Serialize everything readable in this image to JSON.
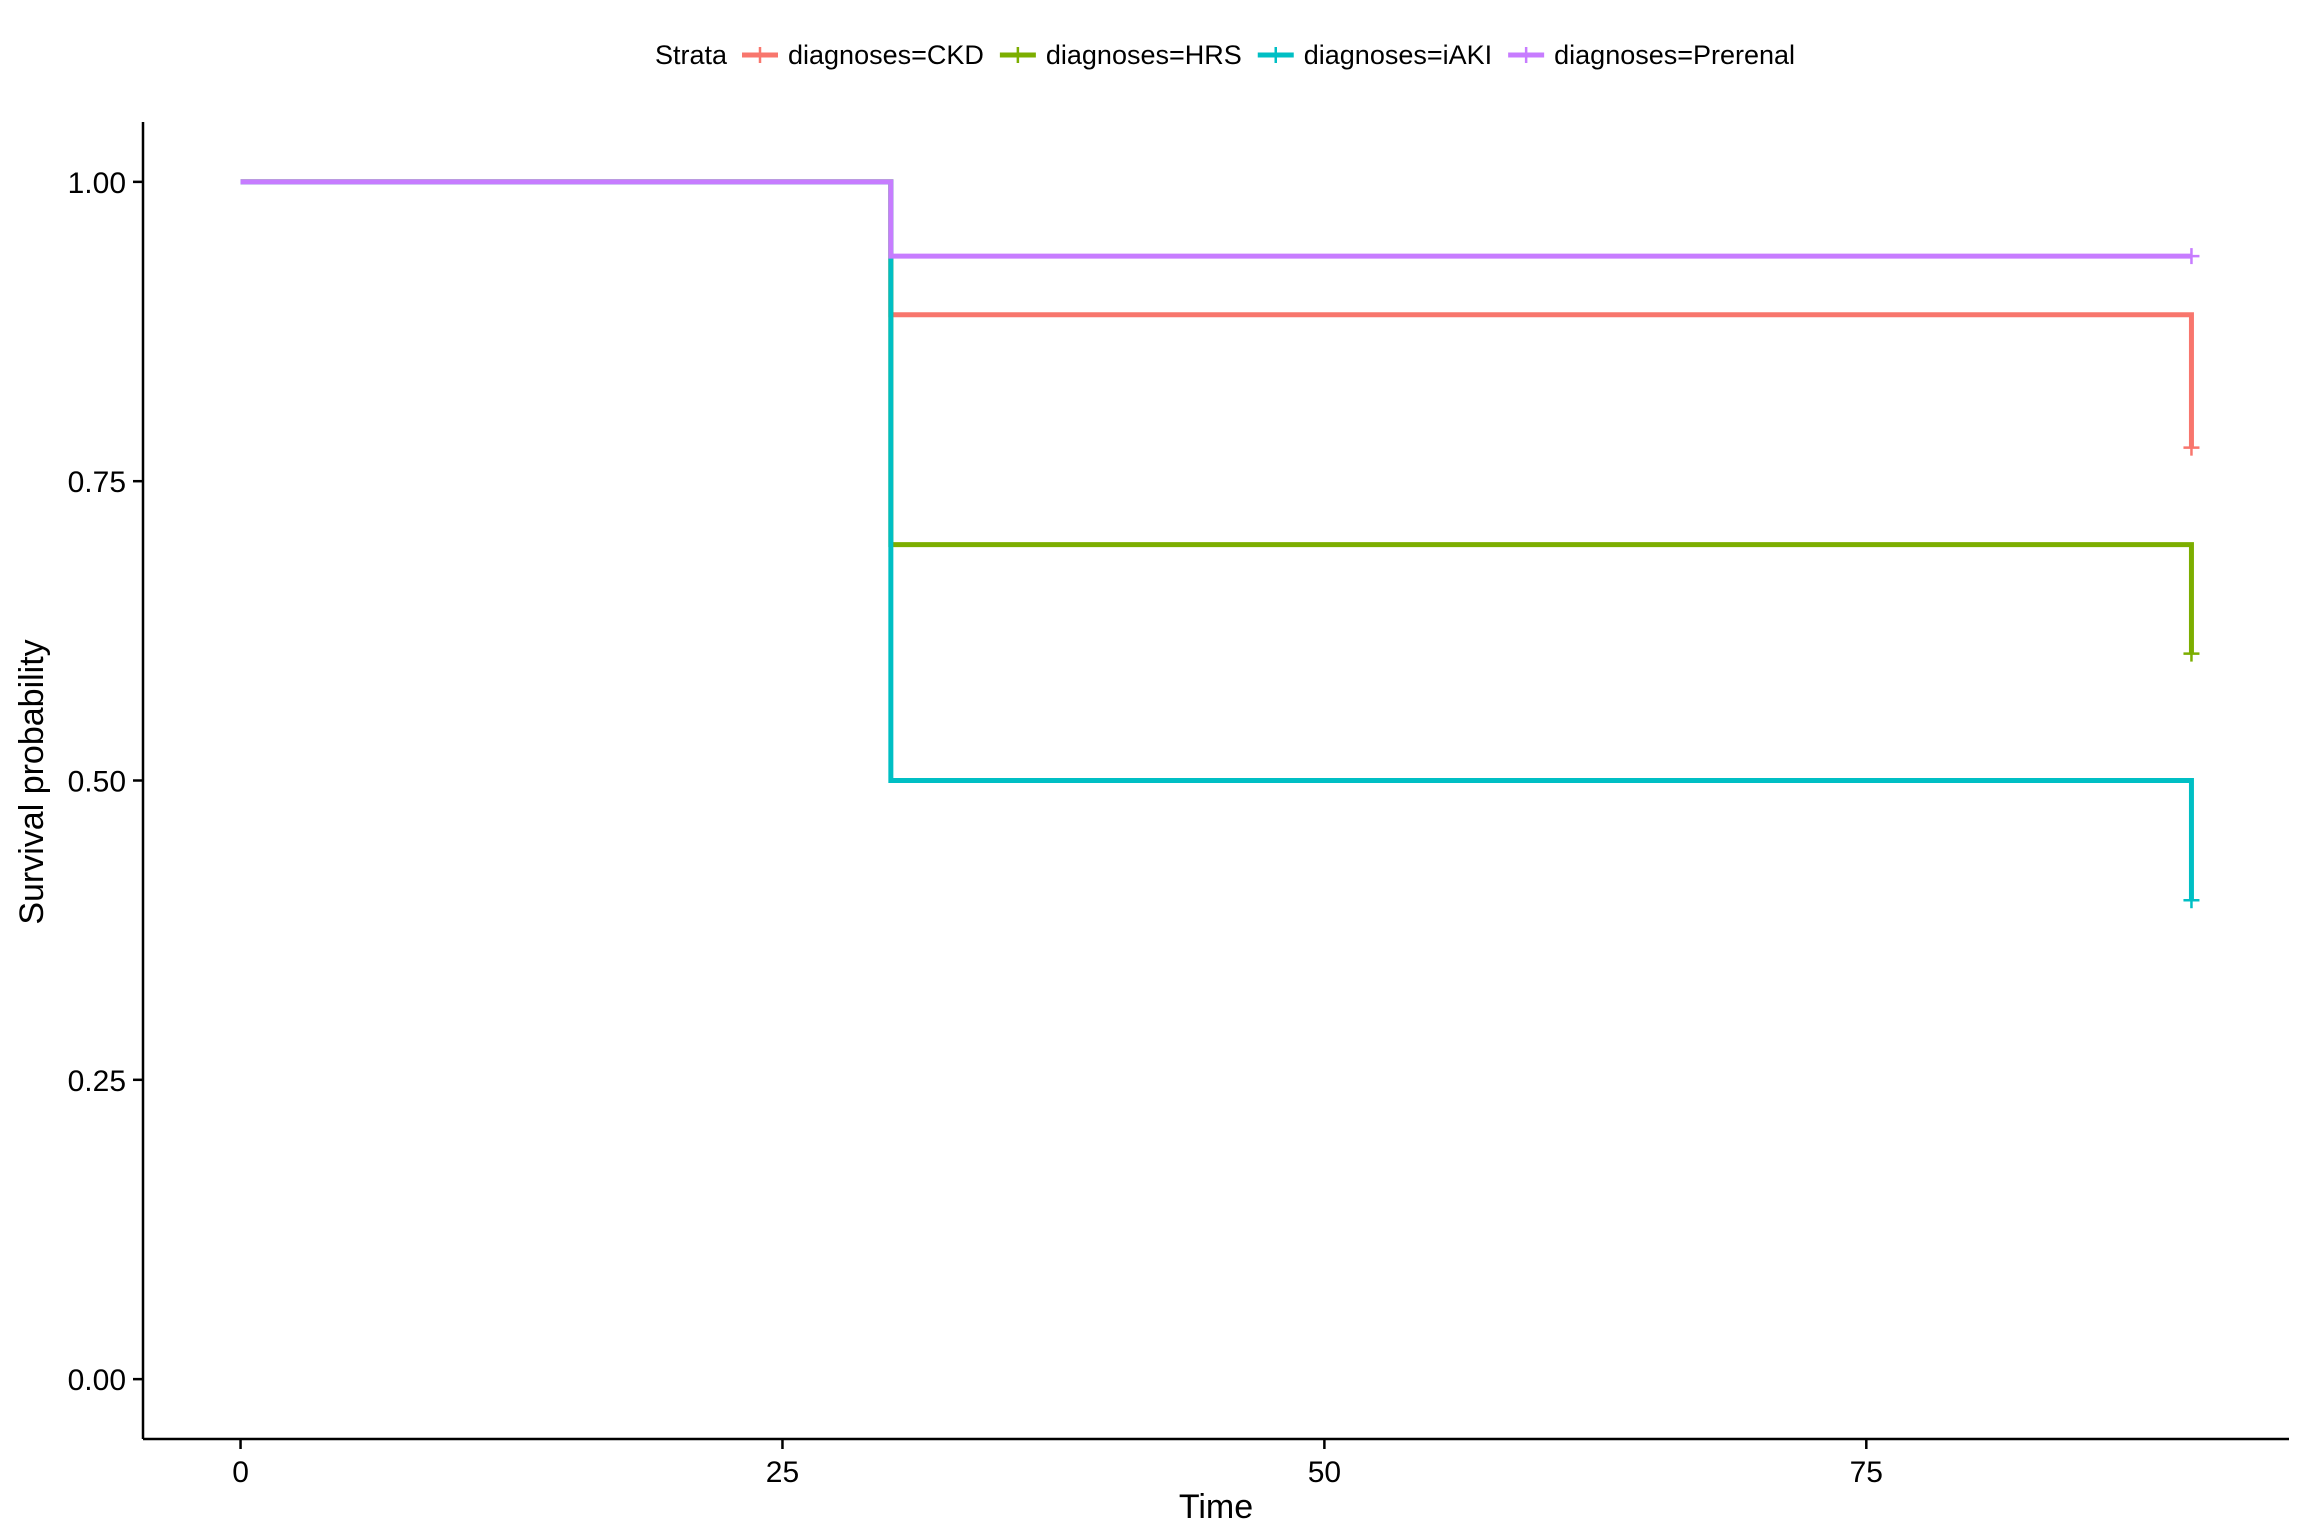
{
  "chart_data": {
    "type": "line",
    "subtype": "kaplan-meier-step",
    "xlabel": "Time",
    "ylabel": "Survival probability",
    "xlim": [
      -4.5,
      94.5
    ],
    "ylim": [
      -0.05,
      1.05
    ],
    "x_ticks": [
      0,
      25,
      50,
      75
    ],
    "x_tick_labels": [
      "0",
      "25",
      "50",
      "75"
    ],
    "y_ticks": [
      0,
      0.25,
      0.5,
      0.75,
      1
    ],
    "y_tick_labels": [
      "0.00",
      "0.25",
      "0.50",
      "0.75",
      "1.00"
    ],
    "grid": false,
    "legend": {
      "title": "Strata",
      "position": "top"
    },
    "series": [
      {
        "name": "diagnoses=CKD",
        "color": "#F8766D",
        "steps": [
          [
            0,
            1.0
          ],
          [
            30,
            0.889
          ],
          [
            90,
            0.778
          ]
        ],
        "censor": [
          [
            90,
            0.778
          ]
        ]
      },
      {
        "name": "diagnoses=HRS",
        "color": "#7CAE00",
        "steps": [
          [
            0,
            1.0
          ],
          [
            30,
            0.697
          ],
          [
            90,
            0.606
          ]
        ],
        "censor": [
          [
            90,
            0.606
          ]
        ]
      },
      {
        "name": "diagnoses=iAKI",
        "color": "#00BFC4",
        "steps": [
          [
            0,
            1.0
          ],
          [
            30,
            0.5
          ],
          [
            90,
            0.4
          ]
        ],
        "censor": [
          [
            90,
            0.4
          ]
        ]
      },
      {
        "name": "diagnoses=Prerenal",
        "color": "#C77CFF",
        "steps": [
          [
            0,
            1.0
          ],
          [
            30,
            0.938
          ]
        ],
        "end_x": 90,
        "censor": [
          [
            90,
            0.938
          ]
        ]
      }
    ]
  }
}
